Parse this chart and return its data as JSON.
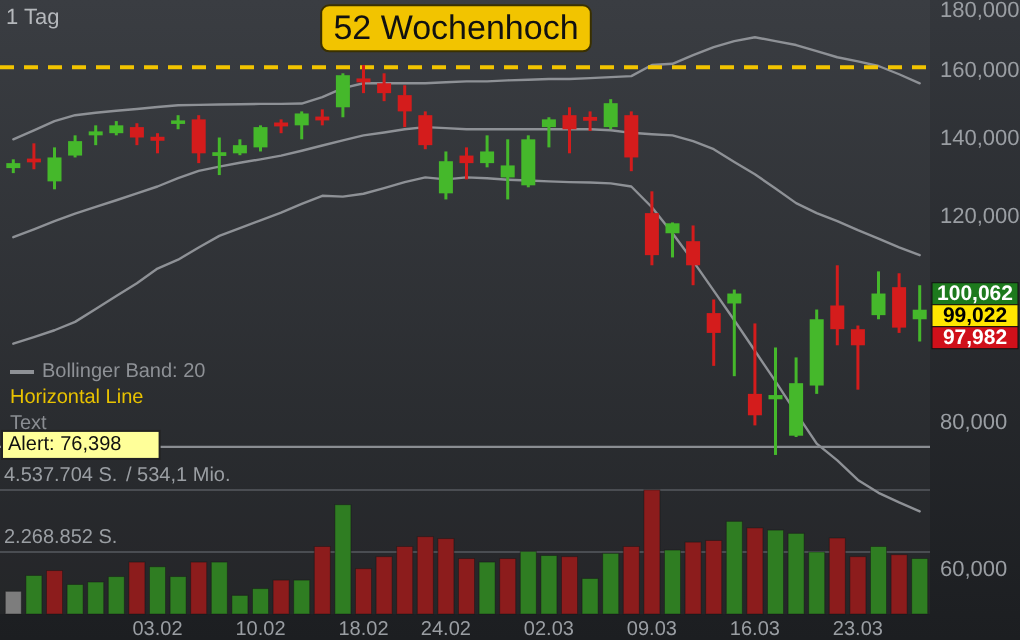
{
  "chart_data": {
    "type": "candlestick",
    "subtitle": "1 Tag",
    "categories": [
      null,
      null,
      null,
      null,
      null,
      null,
      null,
      "03.02",
      null,
      null,
      null,
      null,
      "10.02",
      null,
      null,
      null,
      null,
      "18.02",
      null,
      null,
      null,
      "24.02",
      null,
      null,
      null,
      null,
      "02.03",
      null,
      null,
      null,
      null,
      "09.03",
      null,
      null,
      null,
      null,
      "16.03",
      null,
      null,
      null,
      null,
      "23.03",
      null,
      null,
      null
    ],
    "ohlc": [
      [
        132200,
        134500,
        130900,
        133500
      ],
      [
        134700,
        138800,
        131900,
        133700
      ],
      [
        128800,
        137700,
        126800,
        135000
      ],
      [
        135500,
        141000,
        135000,
        139400
      ],
      [
        141000,
        143800,
        138300,
        142100
      ],
      [
        141600,
        145000,
        141000,
        143800
      ],
      [
        143300,
        144400,
        138300,
        140400
      ],
      [
        140600,
        141600,
        136100,
        139500
      ],
      [
        144200,
        146700,
        142700,
        145200
      ],
      [
        145500,
        146700,
        133500,
        136100
      ],
      [
        135400,
        140400,
        130400,
        136400
      ],
      [
        136100,
        139900,
        135600,
        138300
      ],
      [
        137700,
        143800,
        136600,
        143300
      ],
      [
        144600,
        145500,
        141600,
        143500
      ],
      [
        143800,
        147800,
        139900,
        147200
      ],
      [
        146300,
        148400,
        143800,
        145200
      ],
      [
        149000,
        159300,
        146100,
        158700
      ],
      [
        157700,
        161900,
        153200,
        156500
      ],
      [
        156200,
        159300,
        150800,
        153200
      ],
      [
        152600,
        155600,
        143300,
        147800
      ],
      [
        146700,
        147800,
        137200,
        138300
      ],
      [
        125800,
        136600,
        124300,
        134000
      ],
      [
        135500,
        137700,
        129300,
        133500
      ],
      [
        133500,
        141000,
        132400,
        136600
      ],
      [
        129800,
        139900,
        124300,
        132900
      ],
      [
        127800,
        141000,
        127300,
        139900
      ],
      [
        143300,
        146100,
        137700,
        145500
      ],
      [
        146700,
        149000,
        136100,
        142700
      ],
      [
        146200,
        147800,
        142200,
        145100
      ],
      [
        143300,
        151400,
        142700,
        150200
      ],
      [
        146700,
        147800,
        131400,
        135000
      ],
      [
        121000,
        126300,
        109200,
        111400
      ],
      [
        116300,
        118800,
        110900,
        118600
      ],
      [
        114500,
        118100,
        105000,
        109200
      ],
      [
        99400,
        102100,
        89600,
        95600
      ],
      [
        101300,
        104100,
        87800,
        103300
      ],
      [
        84800,
        97400,
        79700,
        81300
      ],
      [
        83900,
        92900,
        75200,
        84600
      ],
      [
        78100,
        91100,
        77900,
        86600
      ],
      [
        86200,
        100100,
        84800,
        98200
      ],
      [
        100900,
        109200,
        93300,
        96300
      ],
      [
        96300,
        97000,
        85500,
        93300
      ],
      [
        99000,
        107900,
        98200,
        103300
      ],
      [
        104600,
        107500,
        95600,
        96600
      ],
      [
        98200,
        105000,
        94000,
        100062
      ]
    ],
    "series": [
      {
        "type": "bar",
        "axis": "y2",
        "colors": [
          "#7d7d7d",
          "#2f7d22",
          "#8c1c1c",
          "#2f7d22",
          "#2f7d22",
          "#2f7d22",
          "#8c1c1c",
          "#2f7d22",
          "#2f7d22",
          "#8c1c1c",
          "#2f7d22",
          "#2f7d22",
          "#2f7d22",
          "#8c1c1c",
          "#2f7d22",
          "#8c1c1c",
          "#2f7d22",
          "#8c1c1c",
          "#8c1c1c",
          "#8c1c1c",
          "#8c1c1c",
          "#8c1c1c",
          "#8c1c1c",
          "#2f7d22",
          "#8c1c1c",
          "#2f7d22",
          "#2f7d22",
          "#8c1c1c",
          "#2f7d22",
          "#2f7d22",
          "#8c1c1c",
          "#8c1c1c",
          "#2f7d22",
          "#8c1c1c",
          "#8c1c1c",
          "#2f7d22",
          "#8c1c1c",
          "#2f7d22",
          "#2f7d22",
          "#2f7d22",
          "#8c1c1c",
          "#8c1c1c",
          "#2f7d22",
          "#8c1c1c",
          "#2f7d22"
        ],
        "values": [
          830000,
          1410000,
          1590000,
          1080000,
          1170000,
          1370000,
          1900000,
          1730000,
          1370000,
          1900000,
          1900000,
          680000,
          930000,
          1240000,
          1240000,
          2470000,
          4000000,
          1660000,
          2100000,
          2470000,
          2830000,
          2760000,
          2030000,
          1900000,
          2030000,
          2290000,
          2140000,
          2100000,
          1300000,
          2220000,
          2470000,
          4540000,
          2340000,
          2630000,
          2690000,
          3390000,
          3150000,
          3070000,
          2950000,
          2270000,
          2780000,
          2100000,
          2470000,
          2170000,
          2030000
        ]
      },
      {
        "type": "line",
        "name": "Bollinger Band: 20",
        "color": "#8e9196",
        "values": [
          139900,
          142400,
          145000,
          146700,
          147400,
          148000,
          148500,
          149100,
          149600,
          149700,
          149800,
          149900,
          150000,
          150000,
          150100,
          152000,
          154700,
          156200,
          156200,
          156200,
          156200,
          156500,
          156800,
          156800,
          157100,
          157300,
          157500,
          157500,
          157800,
          158100,
          158400,
          161900,
          162300,
          165100,
          167700,
          169700,
          171000,
          169700,
          168400,
          166400,
          164400,
          163100,
          161600,
          159000,
          156200
        ]
      },
      {
        "type": "line",
        "color": "#8e9196",
        "values": [
          115400,
          117200,
          119100,
          120900,
          122500,
          124100,
          125800,
          127500,
          129600,
          131500,
          132600,
          133600,
          134500,
          135500,
          136800,
          138200,
          139600,
          141000,
          141800,
          142700,
          143300,
          143000,
          142700,
          142700,
          142700,
          142700,
          142700,
          142700,
          142700,
          142400,
          141700,
          141300,
          141000,
          139400,
          137200,
          133800,
          130600,
          127000,
          123400,
          121000,
          119100,
          117000,
          115100,
          113100,
          111400
        ]
      },
      {
        "type": "line",
        "color": "#8e9196",
        "values": [
          93600,
          94800,
          96100,
          97700,
          100200,
          102800,
          105400,
          108500,
          110400,
          113100,
          115700,
          117500,
          119300,
          121100,
          123200,
          125200,
          125000,
          125700,
          127100,
          128600,
          129800,
          129300,
          129800,
          129600,
          129200,
          129000,
          128800,
          128600,
          128500,
          128300,
          127500,
          122400,
          116300,
          110100,
          103900,
          98000,
          92300,
          86900,
          81700,
          76900,
          74400,
          71600,
          69800,
          68500,
          67300
        ]
      }
    ],
    "log": true,
    "ylim": [
      55000,
      184000
    ],
    "yticks": [
      {
        "value": 60000,
        "label": "60,000"
      },
      {
        "value": 80000,
        "label": "80,000"
      },
      {
        "value": 120000,
        "label": "120,000"
      },
      {
        "value": 140000,
        "label": "140,000"
      },
      {
        "value": 160000,
        "label": "160,000"
      },
      {
        "value": 180000,
        "label": "180,000"
      }
    ],
    "y2lim": [
      0,
      22469000
    ],
    "y2ticks": [
      {
        "value": 2268852,
        "label": "2.268.852 S."
      },
      {
        "value": 4537704,
        "label": "4.537.704 S."
      }
    ],
    "ref_lines": [
      {
        "axis": "y",
        "value": 161200,
        "label": "52 Wochenhoch",
        "color": "#f2c400",
        "line_style": "dashed"
      },
      {
        "axis": "y",
        "value": 76398,
        "label": "Alert: 76,398",
        "color": "#8a8d92",
        "line_style": "solid"
      }
    ],
    "annotations": [
      "Horizontal Line",
      "Text",
      "100,062",
      "99,022",
      "97,982",
      "/ 534,1 Mio."
    ],
    "legend": "left"
  }
}
